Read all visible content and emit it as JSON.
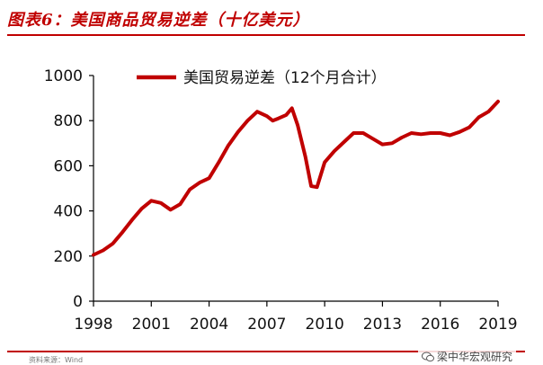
{
  "header": {
    "title": "图表6：美国商品贸易逆差（十亿美元）"
  },
  "footer": {
    "source_left": "资料来源：Wind",
    "watermark": "梁中华宏观研究"
  },
  "chart_data": {
    "type": "line",
    "title": "",
    "xlabel": "",
    "ylabel": "",
    "xlim": [
      1998,
      2019
    ],
    "ylim": [
      0,
      1000
    ],
    "x_ticks": [
      "1998",
      "2001",
      "2004",
      "2007",
      "2010",
      "2013",
      "2016",
      "2019"
    ],
    "y_ticks": [
      "0",
      "200",
      "400",
      "600",
      "800",
      "1000"
    ],
    "grid": false,
    "legend_position": "top-left",
    "colors": {
      "series": "#c00000",
      "axis": "#000000"
    },
    "series": [
      {
        "name": "美国贸易逆差（12个月合计）",
        "x": [
          1998.0,
          1998.5,
          1999.0,
          1999.5,
          2000.0,
          2000.5,
          2001.0,
          2001.5,
          2002.0,
          2002.5,
          2003.0,
          2003.5,
          2004.0,
          2004.5,
          2005.0,
          2005.5,
          2006.0,
          2006.5,
          2007.0,
          2007.3,
          2007.6,
          2008.0,
          2008.3,
          2008.6,
          2009.0,
          2009.3,
          2009.6,
          2010.0,
          2010.5,
          2011.0,
          2011.5,
          2012.0,
          2012.5,
          2013.0,
          2013.5,
          2014.0,
          2014.5,
          2015.0,
          2015.5,
          2016.0,
          2016.5,
          2017.0,
          2017.5,
          2018.0,
          2018.5,
          2019.0
        ],
        "y": [
          205,
          225,
          255,
          305,
          360,
          410,
          445,
          435,
          405,
          430,
          495,
          525,
          545,
          615,
          690,
          750,
          800,
          840,
          820,
          800,
          810,
          825,
          855,
          780,
          640,
          510,
          505,
          615,
          665,
          705,
          745,
          745,
          720,
          695,
          700,
          725,
          745,
          740,
          745,
          745,
          735,
          750,
          770,
          815,
          840,
          885
        ]
      }
    ]
  }
}
